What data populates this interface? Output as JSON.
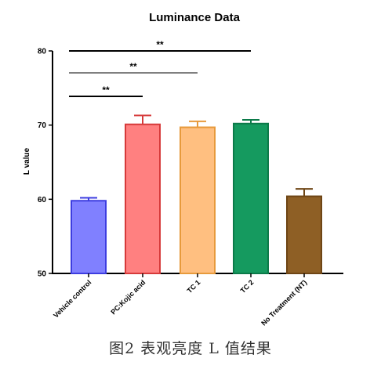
{
  "chart_data": {
    "type": "bar",
    "title": "Luminance Data",
    "xlabel": "",
    "ylabel": "L value",
    "ylim": [
      50,
      80
    ],
    "yticks": [
      50,
      60,
      70,
      80
    ],
    "grid": false,
    "categories": [
      "Vehicle control",
      "PC:Kojic acid",
      "TC 1",
      "TC 2",
      "No Treatment (NT)"
    ],
    "values": [
      59.8,
      70.1,
      69.7,
      70.2,
      60.4
    ],
    "errors": [
      0.4,
      1.2,
      0.8,
      0.5,
      1.0
    ],
    "colors": {
      "fill": [
        "#8080ff",
        "#ff8080",
        "#ffbf80",
        "#159a5f",
        "#8e5f25"
      ],
      "stroke": [
        "#3d3de0",
        "#d63a3a",
        "#e79a3c",
        "#0c7a49",
        "#6e4515"
      ]
    },
    "significance": [
      {
        "from": 0,
        "to": 3,
        "label": "**"
      },
      {
        "from": 0,
        "to": 2,
        "label": "**"
      },
      {
        "from": 0,
        "to": 1,
        "label": "**"
      }
    ]
  },
  "caption": "图2 表观亮度 L 值结果"
}
